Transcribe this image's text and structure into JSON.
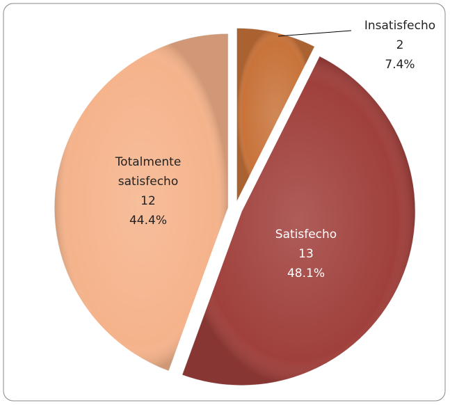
{
  "chart_data": {
    "type": "pie",
    "categories": [
      "Insatisfecho",
      "Satisfecho",
      "Totalmente satisfecho"
    ],
    "values": [
      2,
      13,
      12
    ],
    "percent_labels": [
      "7.4%",
      "48.1%",
      "44.4%"
    ],
    "colors": [
      "#c8733a",
      "#a0403c",
      "#f5b38b"
    ]
  }
}
